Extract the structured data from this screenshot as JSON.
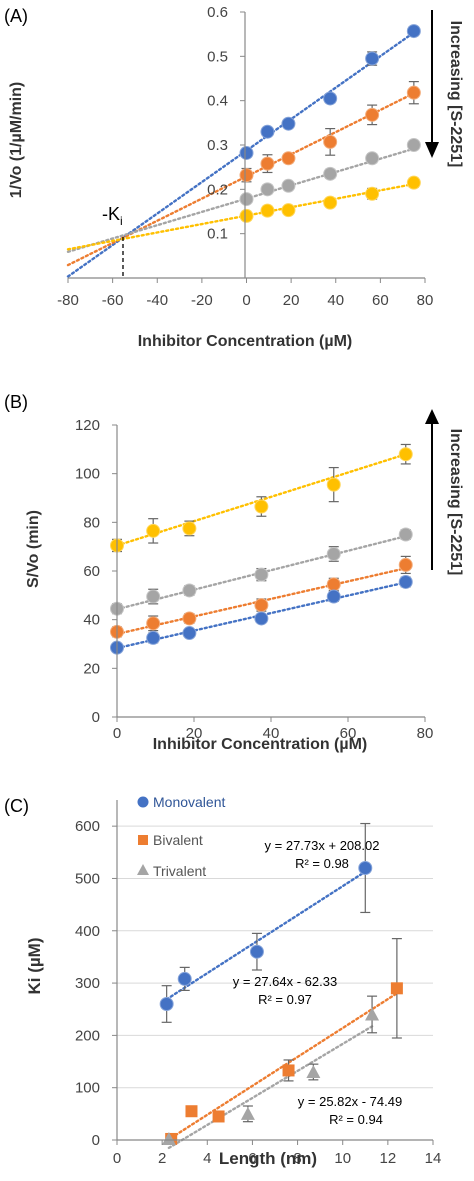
{
  "chart_data": [
    {
      "panel_label": "(A)",
      "type": "scatter",
      "xlabel": "Inhibitor Concentration (µM)",
      "ylabel": "1/Vo (1/µM/min)",
      "xlim": [
        -80,
        80
      ],
      "ylim": [
        0,
        0.6
      ],
      "xticks": [
        -80,
        -60,
        -40,
        -20,
        0,
        20,
        40,
        60,
        80
      ],
      "yticks": [
        0.1,
        0.2,
        0.3,
        0.4,
        0.5,
        0.6
      ],
      "side_label": "Increasing [S-2251]",
      "arrow_direction": "down",
      "ki_label": "-K",
      "ki_sub": "i",
      "ki_x": -56,
      "ki_y": 0.095,
      "trendline_xrange": [
        -80,
        75
      ],
      "series": [
        {
          "color": "#4472C4",
          "x": [
            0,
            9.4,
            18.8,
            37.5,
            56.3,
            75
          ],
          "y": [
            0.282,
            0.33,
            0.348,
            0.405,
            0.495,
            0.557
          ],
          "err": [
            0.01,
            0.008,
            0.008,
            0.01,
            0.015,
            0.01
          ],
          "fit": [
            0.2874,
            0.00355
          ]
        },
        {
          "color": "#ED7D31",
          "x": [
            0,
            9.4,
            18.8,
            37.5,
            56.3,
            75
          ],
          "y": [
            0.232,
            0.258,
            0.27,
            0.307,
            0.368,
            0.418
          ],
          "err": [
            0.015,
            0.02,
            0.01,
            0.03,
            0.022,
            0.025
          ],
          "fit": [
            0.2291,
            0.0025
          ]
        },
        {
          "color": "#A5A5A5",
          "x": [
            0,
            9.4,
            18.8,
            37.5,
            56.3,
            75
          ],
          "y": [
            0.178,
            0.2,
            0.208,
            0.235,
            0.27,
            0.3
          ],
          "err": [
            0.008,
            0.01,
            0.008,
            0.01,
            0.01,
            0.008
          ],
          "fit": [
            0.1791,
            0.0015
          ]
        },
        {
          "color": "#FFC000",
          "x": [
            0,
            9.4,
            18.8,
            37.5,
            56.3,
            75
          ],
          "y": [
            0.14,
            0.152,
            0.153,
            0.17,
            0.19,
            0.215
          ],
          "err": [
            0.01,
            0.01,
            0.008,
            0.008,
            0.012,
            0.01
          ],
          "fit": [
            0.1407,
            0.00095
          ]
        }
      ]
    },
    {
      "panel_label": "(B)",
      "type": "scatter",
      "xlabel": "Inhibitor Concentration (µM)",
      "ylabel": "S/Vo (min)",
      "xlim": [
        0,
        80
      ],
      "ylim": [
        0,
        120
      ],
      "xticks": [
        0,
        20,
        40,
        60,
        80
      ],
      "yticks": [
        0,
        20,
        40,
        60,
        80,
        100,
        120
      ],
      "side_label": "Increasing [S-2251]",
      "arrow_direction": "up",
      "trendline_xrange": [
        0,
        75
      ],
      "series": [
        {
          "color": "#FFC000",
          "x": [
            0,
            9.4,
            18.8,
            37.5,
            56.3,
            75
          ],
          "y": [
            70.5,
            76.5,
            77.5,
            86.5,
            95.5,
            108
          ],
          "err": [
            2.5,
            5,
            3,
            4,
            7,
            4
          ],
          "fit": [
            70.47,
            0.5
          ]
        },
        {
          "color": "#A5A5A5",
          "x": [
            0,
            9.4,
            18.8,
            37.5,
            56.3,
            75
          ],
          "y": [
            44.5,
            49.5,
            52,
            58.5,
            67,
            75
          ],
          "err": [
            2,
            3,
            2,
            2.5,
            3,
            2
          ],
          "fit": [
            44.31,
            0.4
          ]
        },
        {
          "color": "#ED7D31",
          "x": [
            0,
            9.4,
            18.8,
            37.5,
            56.3,
            75
          ],
          "y": [
            35,
            38.5,
            40.5,
            46,
            54.5,
            62.5
          ],
          "err": [
            2,
            3,
            2,
            2.5,
            2.5,
            3.5
          ],
          "fit": [
            34.13,
            0.36
          ]
        },
        {
          "color": "#4472C4",
          "x": [
            0,
            9.4,
            18.8,
            37.5,
            56.3,
            75
          ],
          "y": [
            28.5,
            32.5,
            34.5,
            40.5,
            49.5,
            55.5
          ],
          "err": [
            1.5,
            2,
            1.5,
            1.5,
            2,
            2
          ],
          "fit": [
            28.31,
            0.36
          ]
        }
      ]
    },
    {
      "panel_label": "(C)",
      "type": "scatter",
      "xlabel": "Length (nm)",
      "ylabel": "Ki (µM)",
      "xlim": [
        0,
        14
      ],
      "ylim": [
        0,
        650
      ],
      "xticks": [
        0,
        2,
        4,
        6,
        8,
        10,
        12,
        14
      ],
      "yticks": [
        0,
        100,
        200,
        300,
        400,
        500,
        600
      ],
      "legend": [
        "Monovalent",
        "Bivalent",
        "Trivalent"
      ],
      "equations": [
        {
          "eq": "y = 27.73x + 208.02",
          "r2": "R² = 0.98"
        },
        {
          "eq": "y = 27.64x - 62.33",
          "r2": "R² = 0.97"
        },
        {
          "eq": "y = 25.82x - 74.49",
          "r2": "R² = 0.94"
        }
      ],
      "series": [
        {
          "name": "Monovalent",
          "marker": "circle",
          "color": "#4472C4",
          "x": [
            2.2,
            3.0,
            6.2,
            11.0
          ],
          "y": [
            260,
            308,
            360,
            520
          ],
          "err": [
            35,
            22,
            35,
            85
          ],
          "fit": [
            208.02,
            27.73
          ],
          "fitx": [
            2.2,
            11.0
          ]
        },
        {
          "name": "Bivalent",
          "marker": "square",
          "color": "#ED7D31",
          "x": [
            2.4,
            3.3,
            4.5,
            7.6,
            12.4
          ],
          "y": [
            2,
            55,
            45,
            133,
            290
          ],
          "err": [
            0,
            0,
            0,
            20,
            95
          ],
          "fit": [
            -62.33,
            27.64
          ],
          "fitx": [
            2.4,
            12.4
          ]
        },
        {
          "name": "Trivalent",
          "marker": "triangle",
          "color": "#A5A5A5",
          "x": [
            2.3,
            5.8,
            8.7,
            11.3
          ],
          "y": [
            2,
            50,
            130,
            240
          ],
          "err": [
            0,
            15,
            15,
            35
          ],
          "fit": [
            -74.49,
            25.82
          ],
          "fitx": [
            2.3,
            11.3
          ]
        }
      ]
    }
  ]
}
